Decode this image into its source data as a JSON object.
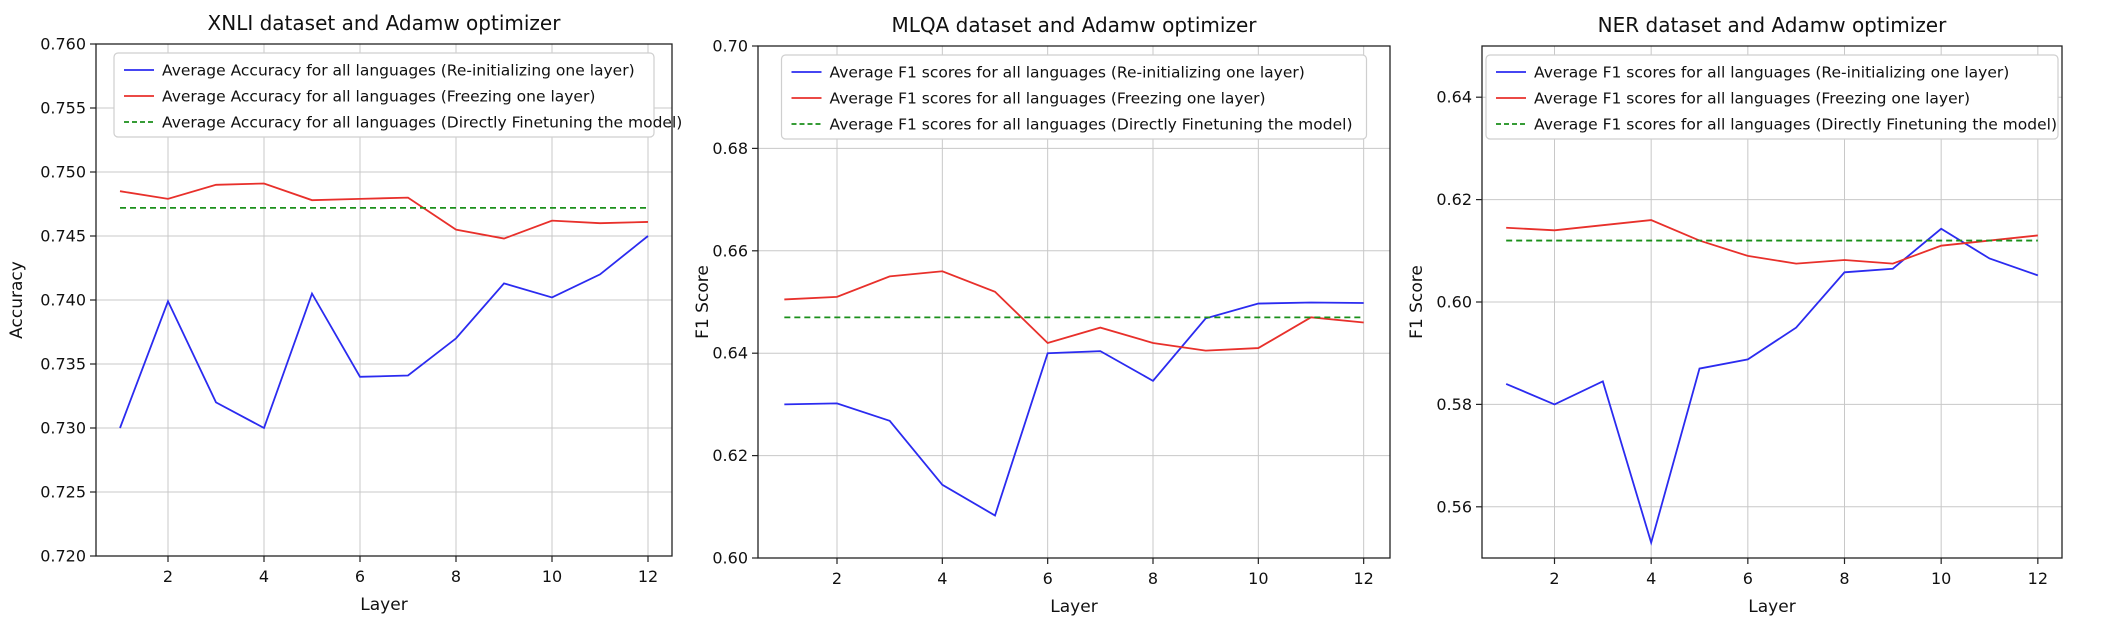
{
  "chart_data": [
    {
      "type": "line",
      "title": "XNLI dataset and Adamw optimizer",
      "xlabel": "Layer",
      "ylabel": "Accuracy",
      "xlim": [
        0.5,
        12.5
      ],
      "ylim": [
        0.72,
        0.76
      ],
      "xticks": [
        2,
        4,
        6,
        8,
        10,
        12
      ],
      "yticks": [
        0.72,
        0.725,
        0.73,
        0.735,
        0.74,
        0.745,
        0.75,
        0.755,
        0.76
      ],
      "ytick_labels": [
        "0.720",
        "0.725",
        "0.730",
        "0.735",
        "0.740",
        "0.745",
        "0.750",
        "0.755",
        "0.760"
      ],
      "grid": true,
      "legend_position": "top",
      "x": [
        1,
        2,
        3,
        4,
        5,
        6,
        7,
        8,
        9,
        10,
        11,
        12
      ],
      "series": [
        {
          "name": "Average Accuracy for all languages (Re-initializing one layer)",
          "color": "#2b2bf0",
          "style": "solid",
          "values": [
            0.73,
            0.7399,
            0.732,
            0.73,
            0.7405,
            0.734,
            0.7341,
            0.737,
            0.7413,
            0.7402,
            0.742,
            0.745
          ]
        },
        {
          "name": "Average Accuracy for all languages (Freezing one layer)",
          "color": "#e8302b",
          "style": "solid",
          "values": [
            0.7485,
            0.7479,
            0.749,
            0.7491,
            0.7478,
            0.7479,
            0.748,
            0.7455,
            0.7448,
            0.7462,
            0.746,
            0.7461
          ]
        },
        {
          "name": "Average Accuracy for all languages (Directly Finetuning the model)",
          "color": "#1a8f1a",
          "style": "dashed",
          "values": [
            0.7472,
            0.7472,
            0.7472,
            0.7472,
            0.7472,
            0.7472,
            0.7472,
            0.7472,
            0.7472,
            0.7472,
            0.7472,
            0.7472
          ]
        }
      ]
    },
    {
      "type": "line",
      "title": "MLQA dataset and Adamw optimizer",
      "xlabel": "Layer",
      "ylabel": "F1 Score",
      "xlim": [
        0.5,
        12.5
      ],
      "ylim": [
        0.6,
        0.7
      ],
      "xticks": [
        2,
        4,
        6,
        8,
        10,
        12
      ],
      "yticks": [
        0.6,
        0.62,
        0.64,
        0.66,
        0.68,
        0.7
      ],
      "ytick_labels": [
        "0.60",
        "0.62",
        "0.64",
        "0.66",
        "0.68",
        "0.70"
      ],
      "grid": true,
      "legend_position": "top",
      "x": [
        1,
        2,
        3,
        4,
        5,
        6,
        7,
        8,
        9,
        10,
        11,
        12
      ],
      "series": [
        {
          "name": "Average F1 scores for all languages (Re-initializing one layer)",
          "color": "#2b2bf0",
          "style": "solid",
          "values": [
            0.63,
            0.6302,
            0.6268,
            0.6143,
            0.6083,
            0.64,
            0.6404,
            0.6346,
            0.6468,
            0.6497,
            0.6499,
            0.6498
          ]
        },
        {
          "name": "Average F1 scores for all languages (Freezing one layer)",
          "color": "#e8302b",
          "style": "solid",
          "values": [
            0.6505,
            0.651,
            0.655,
            0.656,
            0.652,
            0.642,
            0.645,
            0.642,
            0.6405,
            0.641,
            0.647,
            0.646
          ]
        },
        {
          "name": "Average F1 scores for all languages (Directly Finetuning the model)",
          "color": "#1a8f1a",
          "style": "dashed",
          "values": [
            0.647,
            0.647,
            0.647,
            0.647,
            0.647,
            0.647,
            0.647,
            0.647,
            0.647,
            0.647,
            0.647,
            0.647
          ]
        }
      ]
    },
    {
      "type": "line",
      "title": "NER dataset and Adamw optimizer",
      "xlabel": "Layer",
      "ylabel": "F1 Score",
      "xlim": [
        0.5,
        12.5
      ],
      "ylim": [
        0.55,
        0.65
      ],
      "xticks": [
        2,
        4,
        6,
        8,
        10,
        12
      ],
      "yticks": [
        0.56,
        0.58,
        0.6,
        0.62,
        0.64
      ],
      "ytick_labels": [
        "0.56",
        "0.58",
        "0.60",
        "0.62",
        "0.64"
      ],
      "grid": true,
      "legend_position": "top",
      "x": [
        1,
        2,
        3,
        4,
        5,
        6,
        7,
        8,
        9,
        10,
        11,
        12
      ],
      "series": [
        {
          "name": "Average F1 scores for all languages (Re-initializing one layer)",
          "color": "#2b2bf0",
          "style": "solid",
          "values": [
            0.584,
            0.58,
            0.5845,
            0.553,
            0.587,
            0.5888,
            0.595,
            0.6058,
            0.6065,
            0.6143,
            0.6085,
            0.6052
          ]
        },
        {
          "name": "Average F1 scores for all languages (Freezing one layer)",
          "color": "#e8302b",
          "style": "solid",
          "values": [
            0.6145,
            0.614,
            0.615,
            0.616,
            0.612,
            0.609,
            0.6075,
            0.6082,
            0.6075,
            0.611,
            0.612,
            0.613
          ]
        },
        {
          "name": "Average F1 scores for all languages (Directly Finetuning the model)",
          "color": "#1a8f1a",
          "style": "dashed",
          "values": [
            0.612,
            0.612,
            0.612,
            0.612,
            0.612,
            0.612,
            0.612,
            0.612,
            0.612,
            0.612,
            0.612,
            0.612
          ]
        }
      ]
    }
  ]
}
